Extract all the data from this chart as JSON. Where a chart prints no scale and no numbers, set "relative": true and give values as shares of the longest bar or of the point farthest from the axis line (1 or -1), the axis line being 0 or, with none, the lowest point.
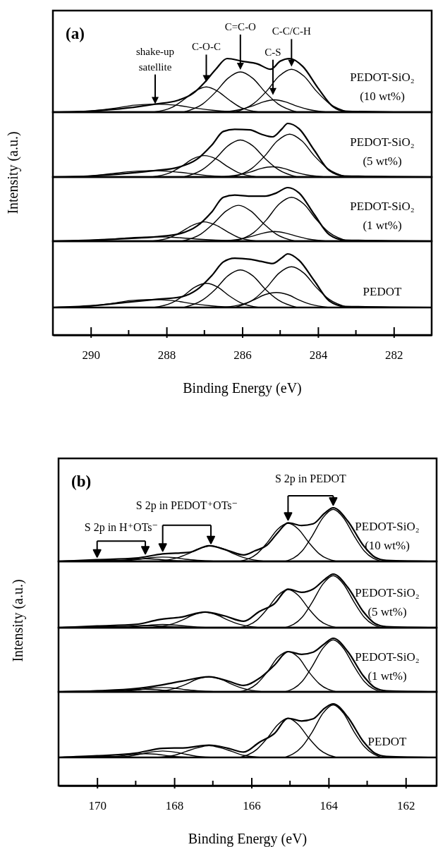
{
  "chart_data": [
    {
      "type": "line",
      "title": "(a)",
      "relative": true,
      "xlim": [
        291,
        281
      ],
      "tick_labels": false,
      "annotations": [
        "PEDOT-SiO₂\n(10 wt%)",
        {
          "text": "shake-up\nsatellite",
          "x": 288.3,
          "y": 0.15
        },
        {
          "text": "C-O-C",
          "x": 286.95,
          "y": 0.56
        },
        {
          "text": "C=C-O",
          "x": 286.05,
          "y": 0.79
        },
        {
          "text": "C-S",
          "x": 285.19,
          "y": 0.32
        },
        {
          "text": "C-C/C-H",
          "x": 284.7,
          "y": 0.85
        }
      ],
      "series": [
        {
          "color": "#000000",
          "x": [
            291,
            290,
            289,
            288.3,
            287.7,
            287.3,
            287.0,
            286.7,
            286.4,
            286.0,
            285.6,
            285.25,
            285.0,
            284.75,
            284.4,
            284.0,
            283.6,
            283.3,
            282,
            281
          ],
          "values": [
            0,
            0.02,
            0.08,
            0.15,
            0.22,
            0.35,
            0.55,
            0.8,
            1.0,
            0.95,
            0.9,
            0.8,
            0.95,
            1.0,
            0.85,
            0.45,
            0.1,
            0.02,
            0,
            0
          ]
        },
        {
          "color": "#000000",
          "x": [
            290.7,
            289.9,
            289.4,
            288.85,
            288.3,
            287.75,
            287.2,
            286.7,
            285.9
          ],
          "values": [
            0,
            0.03,
            0.07,
            0.13,
            0.15,
            0.13,
            0.07,
            0.03,
            0
          ]
        },
        {
          "color": "#000000",
          "x": [
            288.35,
            287.85,
            287.55,
            287.25,
            286.95,
            286.65,
            286.35,
            286.05,
            285.55
          ],
          "values": [
            0,
            0.09,
            0.23,
            0.39,
            0.47,
            0.39,
            0.23,
            0.09,
            0
          ]
        },
        {
          "color": "#000000",
          "x": [
            287.55,
            287.05,
            286.71,
            286.38,
            286.05,
            285.72,
            285.39,
            285.05,
            284.55
          ],
          "values": [
            0,
            0.15,
            0.37,
            0.63,
            0.75,
            0.63,
            0.37,
            0.15,
            0
          ]
        },
        {
          "color": "#000000",
          "x": [
            286.55,
            286.05,
            285.75,
            285.45,
            285.15,
            284.85,
            284.55,
            284.25,
            283.75
          ],
          "values": [
            0,
            0.05,
            0.11,
            0.19,
            0.23,
            0.19,
            0.11,
            0.05,
            0
          ]
        },
        {
          "color": "#000000",
          "x": [
            286.2,
            285.7,
            285.36,
            285.03,
            284.7,
            284.37,
            284.04,
            283.7,
            283.2
          ],
          "values": [
            0,
            0.16,
            0.39,
            0.67,
            0.8,
            0.67,
            0.39,
            0.16,
            0
          ]
        }
      ]
    },
    {
      "type": "line",
      "ylabel": "Intensity (a.u.)",
      "relative": true,
      "xlim": [
        291,
        281
      ],
      "tick_labels": false,
      "annotations": [
        "PEDOT-SiO₂\n(5 wt%)"
      ],
      "series": [
        {
          "color": "#000000",
          "x": [
            291,
            290,
            289,
            288.3,
            287.7,
            287.2,
            286.8,
            286.5,
            286.2,
            285.8,
            285.5,
            285.2,
            284.95,
            284.8,
            284.5,
            284.1,
            283.7,
            283.3,
            281
          ],
          "values": [
            0,
            0.02,
            0.07,
            0.12,
            0.18,
            0.33,
            0.6,
            0.85,
            0.89,
            0.88,
            0.8,
            0.75,
            0.9,
            1.0,
            0.9,
            0.5,
            0.12,
            0.02,
            0
          ]
        },
        {
          "color": "#000000",
          "x": [
            290.8,
            290.0,
            289.5,
            288.95,
            288.4,
            287.85,
            287.3,
            286.8,
            286.0
          ],
          "values": [
            0,
            0.02,
            0.06,
            0.1,
            0.12,
            0.1,
            0.06,
            0.02,
            0
          ]
        },
        {
          "color": "#000000",
          "x": [
            288.4,
            287.9,
            287.6,
            287.3,
            287.0,
            286.7,
            286.4,
            286.1,
            285.6
          ],
          "values": [
            0,
            0.08,
            0.2,
            0.34,
            0.4,
            0.34,
            0.2,
            0.08,
            0
          ]
        },
        {
          "color": "#000000",
          "x": [
            287.55,
            287.05,
            286.71,
            286.38,
            286.05,
            285.72,
            285.39,
            285.05,
            284.55
          ],
          "values": [
            0,
            0.14,
            0.34,
            0.58,
            0.69,
            0.58,
            0.34,
            0.14,
            0
          ]
        },
        {
          "color": "#000000",
          "x": [
            286.6,
            286.1,
            285.8,
            285.5,
            285.2,
            284.9,
            284.6,
            284.3,
            283.8
          ],
          "values": [
            0,
            0.04,
            0.09,
            0.16,
            0.19,
            0.16,
            0.09,
            0.04,
            0
          ]
        },
        {
          "color": "#000000",
          "x": [
            286.25,
            285.75,
            285.41,
            285.08,
            284.75,
            284.42,
            284.09,
            283.75,
            283.25
          ],
          "values": [
            0,
            0.16,
            0.39,
            0.67,
            0.8,
            0.67,
            0.39,
            0.16,
            0
          ]
        }
      ]
    },
    {
      "type": "line",
      "relative": true,
      "xlim": [
        291,
        281
      ],
      "tick_labels": false,
      "annotations": [
        "PEDOT-SiO₂\n(1 wt%)"
      ],
      "series": [
        {
          "color": "#000000",
          "x": [
            291,
            290,
            289,
            288.3,
            287.6,
            287.2,
            286.8,
            286.5,
            286.2,
            285.8,
            285.4,
            285.1,
            284.8,
            284.5,
            284.1,
            283.7,
            283.3,
            281
          ],
          "values": [
            0,
            0.02,
            0.05,
            0.08,
            0.15,
            0.28,
            0.55,
            0.82,
            0.86,
            0.84,
            0.84,
            0.9,
            1.0,
            0.9,
            0.5,
            0.12,
            0.02,
            0
          ]
        },
        {
          "color": "#000000",
          "x": [
            290.7,
            289.9,
            289.4,
            288.85,
            288.3,
            287.75,
            287.2,
            286.7,
            285.9
          ],
          "values": [
            0,
            0.02,
            0.04,
            0.07,
            0.08,
            0.07,
            0.04,
            0.02,
            0
          ]
        },
        {
          "color": "#000000",
          "x": [
            288.4,
            287.9,
            287.6,
            287.3,
            287.0,
            286.7,
            286.4,
            286.1,
            285.6
          ],
          "values": [
            0,
            0.07,
            0.18,
            0.3,
            0.36,
            0.3,
            0.18,
            0.07,
            0
          ]
        },
        {
          "color": "#000000",
          "x": [
            287.6,
            287.1,
            286.76,
            286.43,
            286.1,
            285.77,
            285.44,
            285.1,
            284.6
          ],
          "values": [
            0,
            0.13,
            0.33,
            0.56,
            0.67,
            0.56,
            0.33,
            0.13,
            0
          ]
        },
        {
          "color": "#000000",
          "x": [
            286.55,
            286.05,
            285.75,
            285.45,
            285.15,
            284.85,
            284.55,
            284.25,
            283.75
          ],
          "values": [
            0,
            0.04,
            0.09,
            0.15,
            0.18,
            0.15,
            0.09,
            0.04,
            0
          ]
        },
        {
          "color": "#000000",
          "x": [
            286.2,
            285.7,
            285.36,
            285.03,
            284.7,
            284.37,
            284.04,
            283.7,
            283.2
          ],
          "values": [
            0,
            0.16,
            0.4,
            0.69,
            0.82,
            0.69,
            0.4,
            0.16,
            0
          ]
        }
      ]
    },
    {
      "type": "line",
      "xlabel": "Binding Energy (eV)",
      "relative": true,
      "xlim": [
        291,
        281
      ],
      "tick_labels": "x",
      "xticks": [
        290,
        288,
        286,
        284,
        282
      ],
      "annotations": [
        "PEDOT"
      ],
      "series": [
        {
          "color": "#000000",
          "x": [
            291,
            290,
            289,
            288.3,
            287.6,
            287.2,
            286.8,
            286.5,
            286.2,
            285.8,
            285.5,
            285.2,
            284.95,
            284.8,
            284.5,
            284.1,
            283.7,
            283.3,
            281
          ],
          "values": [
            0,
            0.03,
            0.1,
            0.15,
            0.2,
            0.33,
            0.6,
            0.85,
            0.92,
            0.9,
            0.86,
            0.82,
            0.93,
            1.0,
            0.88,
            0.5,
            0.12,
            0.02,
            0
          ]
        },
        {
          "color": "#000000",
          "x": [
            290.8,
            290.0,
            289.5,
            288.95,
            288.4,
            287.85,
            287.3,
            286.8,
            286.0
          ],
          "values": [
            0,
            0.03,
            0.07,
            0.13,
            0.15,
            0.13,
            0.07,
            0.03,
            0
          ]
        },
        {
          "color": "#000000",
          "x": [
            288.35,
            287.85,
            287.55,
            287.25,
            286.95,
            286.65,
            286.35,
            286.05,
            285.55
          ],
          "values": [
            0,
            0.09,
            0.22,
            0.38,
            0.45,
            0.38,
            0.22,
            0.09,
            0
          ]
        },
        {
          "color": "#000000",
          "x": [
            287.55,
            287.05,
            286.71,
            286.38,
            286.05,
            285.72,
            285.39,
            285.05,
            284.55
          ],
          "values": [
            0,
            0.14,
            0.34,
            0.59,
            0.7,
            0.59,
            0.34,
            0.14,
            0
          ]
        },
        {
          "color": "#000000",
          "x": [
            286.5,
            286.0,
            285.7,
            285.4,
            285.1,
            284.8,
            284.5,
            284.2,
            283.7
          ],
          "values": [
            0,
            0.06,
            0.14,
            0.24,
            0.28,
            0.24,
            0.14,
            0.06,
            0
          ]
        },
        {
          "color": "#000000",
          "x": [
            286.2,
            285.7,
            285.36,
            285.03,
            284.7,
            284.37,
            284.04,
            283.7,
            283.2
          ],
          "values": [
            0,
            0.15,
            0.37,
            0.64,
            0.76,
            0.64,
            0.37,
            0.15,
            0
          ]
        }
      ]
    },
    {
      "type": "line",
      "title": "(b)",
      "relative": true,
      "xlim": [
        171,
        161.2
      ],
      "tick_labels": false,
      "annotations": [
        "PEDOT-SiO₂\n(10 wt%)",
        "S 2p in H⁺OTs⁻",
        "S 2p in PEDOT⁺OTs⁻",
        "S 2p in PEDOT"
      ],
      "series": [
        {
          "color": "#000000",
          "x": [
            171,
            170,
            169,
            168.3,
            167.6,
            167.1,
            166.6,
            166.2,
            165.9,
            165.6,
            165.3,
            165.05,
            164.7,
            164.4,
            164.1,
            163.88,
            163.5,
            163.1,
            162.8,
            162.5,
            161.2
          ],
          "values": [
            0,
            0.03,
            0.06,
            0.14,
            0.17,
            0.29,
            0.2,
            0.12,
            0.2,
            0.3,
            0.55,
            0.72,
            0.67,
            0.7,
            0.9,
            1.0,
            0.75,
            0.3,
            0.08,
            0.02,
            0
          ]
        },
        {
          "color": "#000000",
          "x": [
            170.9,
            170.6,
            170.3,
            170.0,
            169.7,
            169.4,
            169.1,
            168.6
          ],
          "values": [
            0.005,
            0.01,
            0.017,
            0.02,
            0.017,
            0.01,
            0.005,
            0
          ]
        },
        {
          "color": "#000000",
          "x": [
            170.15,
            169.65,
            169.35,
            169.05,
            168.75,
            168.45,
            168.15,
            167.85,
            167.35
          ],
          "values": [
            0,
            0.01,
            0.02,
            0.04,
            0.05,
            0.04,
            0.02,
            0.01,
            0
          ]
        },
        {
          "color": "#000000",
          "x": [
            169.7,
            169.2,
            168.9,
            168.6,
            168.3,
            168.0,
            167.7,
            167.4,
            166.9
          ],
          "values": [
            0,
            0.02,
            0.04,
            0.07,
            0.08,
            0.07,
            0.04,
            0.02,
            0
          ]
        },
        {
          "color": "#000000",
          "x": [
            168.45,
            167.95,
            167.65,
            167.35,
            167.05,
            166.75,
            166.45,
            166.15,
            165.65
          ],
          "values": [
            0,
            0.06,
            0.14,
            0.24,
            0.29,
            0.24,
            0.14,
            0.06,
            0
          ]
        },
        {
          "color": "#000000",
          "x": [
            166.3,
            165.86,
            165.59,
            165.32,
            165.05,
            164.78,
            164.51,
            164.24,
            163.8
          ],
          "values": [
            0,
            0.14,
            0.35,
            0.6,
            0.71,
            0.6,
            0.35,
            0.14,
            0
          ]
        },
        {
          "color": "#000000",
          "x": [
            165.13,
            164.69,
            164.42,
            164.15,
            163.88,
            163.61,
            163.34,
            163.07,
            162.63
          ],
          "values": [
            0,
            0.19,
            0.48,
            0.81,
            0.97,
            0.81,
            0.48,
            0.19,
            0
          ]
        }
      ]
    },
    {
      "type": "line",
      "ylabel": "Intensity (a.u.)",
      "relative": true,
      "xlim": [
        171,
        161.2
      ],
      "tick_labels": false,
      "annotations": [
        "PEDOT-SiO₂\n(5 wt%)"
      ],
      "series": [
        {
          "color": "#000000",
          "x": [
            171,
            170,
            169,
            168.4,
            167.8,
            167.2,
            166.7,
            166.2,
            165.8,
            165.4,
            165.05,
            164.7,
            164.4,
            164.1,
            163.88,
            163.5,
            163.1,
            162.8,
            162.5,
            161.2
          ],
          "values": [
            0,
            0.03,
            0.06,
            0.15,
            0.2,
            0.29,
            0.22,
            0.12,
            0.3,
            0.45,
            0.72,
            0.66,
            0.72,
            0.9,
            1.0,
            0.75,
            0.3,
            0.08,
            0.02,
            0
          ]
        },
        {
          "color": "#000000",
          "x": [
            170.9,
            170.6,
            170.3,
            170.0,
            169.7,
            169.4,
            169.1,
            168.6
          ],
          "values": [
            0.005,
            0.01,
            0.017,
            0.02,
            0.017,
            0.01,
            0.005,
            0
          ]
        },
        {
          "color": "#000000",
          "x": [
            170.15,
            169.65,
            169.35,
            169.05,
            168.75,
            168.45,
            168.15,
            167.85,
            167.35
          ],
          "values": [
            0,
            0.01,
            0.02,
            0.03,
            0.04,
            0.03,
            0.02,
            0.01,
            0
          ]
        },
        {
          "color": "#000000",
          "x": [
            169.7,
            169.2,
            168.9,
            168.6,
            168.3,
            168.0,
            167.7,
            167.4,
            166.9
          ],
          "values": [
            0,
            0.01,
            0.03,
            0.05,
            0.06,
            0.05,
            0.03,
            0.01,
            0
          ]
        },
        {
          "color": "#000000",
          "x": [
            168.6,
            168.1,
            167.8,
            167.5,
            167.2,
            166.9,
            166.6,
            166.3,
            165.8
          ],
          "values": [
            0,
            0.06,
            0.14,
            0.24,
            0.29,
            0.24,
            0.14,
            0.06,
            0
          ]
        },
        {
          "color": "#000000",
          "x": [
            166.3,
            165.86,
            165.59,
            165.32,
            165.05,
            164.78,
            164.51,
            164.24,
            163.8
          ],
          "values": [
            0,
            0.14,
            0.35,
            0.6,
            0.71,
            0.6,
            0.35,
            0.14,
            0
          ]
        },
        {
          "color": "#000000",
          "x": [
            165.13,
            164.69,
            164.42,
            164.15,
            163.88,
            163.61,
            163.34,
            163.07,
            162.63
          ],
          "values": [
            0,
            0.19,
            0.48,
            0.81,
            0.97,
            0.81,
            0.48,
            0.19,
            0
          ]
        }
      ]
    },
    {
      "type": "line",
      "relative": true,
      "xlim": [
        171,
        161.2
      ],
      "tick_labels": false,
      "annotations": [
        "PEDOT-SiO₂\n(1 wt%)"
      ],
      "series": [
        {
          "color": "#000000",
          "x": [
            171,
            170,
            169,
            168.4,
            167.8,
            167.1,
            166.6,
            166.2,
            165.8,
            165.4,
            165.05,
            164.7,
            164.4,
            164.1,
            163.88,
            163.5,
            163.1,
            162.8,
            162.5,
            161.2
          ],
          "values": [
            0,
            0.02,
            0.06,
            0.12,
            0.2,
            0.28,
            0.2,
            0.12,
            0.25,
            0.5,
            0.75,
            0.7,
            0.74,
            0.9,
            1.0,
            0.75,
            0.3,
            0.08,
            0.02,
            0
          ]
        },
        {
          "color": "#000000",
          "x": [
            170.9,
            170.6,
            170.3,
            170.0,
            169.7,
            169.4,
            169.1,
            168.6
          ],
          "values": [
            0.005,
            0.01,
            0.017,
            0.02,
            0.017,
            0.01,
            0.005,
            0
          ]
        },
        {
          "color": "#000000",
          "x": [
            170.15,
            169.65,
            169.35,
            169.05,
            168.75,
            168.45,
            168.15,
            167.85,
            167.35
          ],
          "values": [
            0,
            0.01,
            0.02,
            0.04,
            0.05,
            0.04,
            0.02,
            0.01,
            0
          ]
        },
        {
          "color": "#000000",
          "x": [
            169.7,
            169.2,
            168.9,
            168.6,
            168.3,
            168.0,
            167.7,
            167.4,
            166.9
          ],
          "values": [
            0,
            0.02,
            0.04,
            0.07,
            0.08,
            0.07,
            0.04,
            0.02,
            0
          ]
        },
        {
          "color": "#000000",
          "x": [
            168.5,
            168.0,
            167.7,
            167.4,
            167.1,
            166.8,
            166.5,
            166.2,
            165.7
          ],
          "values": [
            0,
            0.06,
            0.14,
            0.24,
            0.28,
            0.24,
            0.14,
            0.06,
            0
          ]
        },
        {
          "color": "#000000",
          "x": [
            166.3,
            165.86,
            165.59,
            165.32,
            165.05,
            164.78,
            164.51,
            164.24,
            163.8
          ],
          "values": [
            0,
            0.15,
            0.37,
            0.64,
            0.75,
            0.64,
            0.37,
            0.15,
            0
          ]
        },
        {
          "color": "#000000",
          "x": [
            165.13,
            164.69,
            164.42,
            164.15,
            163.88,
            163.61,
            163.34,
            163.07,
            162.63
          ],
          "values": [
            0,
            0.19,
            0.48,
            0.81,
            0.97,
            0.81,
            0.48,
            0.19,
            0
          ]
        }
      ]
    },
    {
      "type": "line",
      "xlabel": "Binding Energy (eV)",
      "relative": true,
      "xlim": [
        171,
        161.2
      ],
      "tick_labels": "x",
      "xticks": [
        170,
        168,
        166,
        164,
        162
      ],
      "annotations": [
        "PEDOT"
      ],
      "series": [
        {
          "color": "#000000",
          "x": [
            171,
            170,
            169,
            168.3,
            167.7,
            167.1,
            166.6,
            166.2,
            165.8,
            165.4,
            165.05,
            164.7,
            164.4,
            164.1,
            163.88,
            163.5,
            163.1,
            162.8,
            162.5,
            161.2
          ],
          "values": [
            0,
            0.03,
            0.08,
            0.17,
            0.18,
            0.23,
            0.17,
            0.1,
            0.28,
            0.45,
            0.73,
            0.68,
            0.72,
            0.92,
            1.0,
            0.75,
            0.3,
            0.08,
            0.02,
            0
          ]
        },
        {
          "color": "#000000",
          "x": [
            170.9,
            170.6,
            170.3,
            170.0,
            169.7,
            169.4,
            169.1,
            168.6
          ],
          "values": [
            0.005,
            0.01,
            0.017,
            0.02,
            0.017,
            0.01,
            0.005,
            0
          ]
        },
        {
          "color": "#000000",
          "x": [
            170.15,
            169.65,
            169.35,
            169.05,
            168.75,
            168.45,
            168.15,
            167.85,
            167.35
          ],
          "values": [
            0,
            0.01,
            0.03,
            0.06,
            0.07,
            0.06,
            0.03,
            0.01,
            0
          ]
        },
        {
          "color": "#000000",
          "x": [
            169.7,
            169.2,
            168.9,
            168.6,
            168.3,
            168.0,
            167.7,
            167.4,
            166.9
          ],
          "values": [
            0,
            0.02,
            0.06,
            0.1,
            0.12,
            0.1,
            0.06,
            0.02,
            0
          ]
        },
        {
          "color": "#000000",
          "x": [
            168.5,
            168.0,
            167.7,
            167.4,
            167.1,
            166.8,
            166.5,
            166.2,
            165.7
          ],
          "values": [
            0,
            0.04,
            0.11,
            0.18,
            0.22,
            0.18,
            0.11,
            0.04,
            0
          ]
        },
        {
          "color": "#000000",
          "x": [
            166.3,
            165.86,
            165.59,
            165.32,
            165.05,
            164.78,
            164.51,
            164.24,
            163.8
          ],
          "values": [
            0,
            0.15,
            0.36,
            0.61,
            0.73,
            0.61,
            0.36,
            0.15,
            0
          ]
        },
        {
          "color": "#000000",
          "x": [
            165.13,
            164.69,
            164.42,
            164.15,
            163.88,
            163.61,
            163.34,
            163.07,
            162.63
          ],
          "values": [
            0,
            0.2,
            0.48,
            0.82,
            0.98,
            0.82,
            0.48,
            0.2,
            0
          ]
        }
      ]
    }
  ]
}
